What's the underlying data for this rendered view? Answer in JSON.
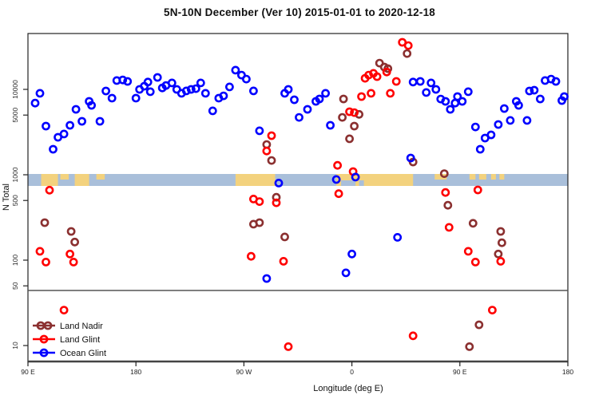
{
  "title": "5N-10N December (Ver 10)   2015-01-01 to 2020-12-18",
  "legend": {
    "entries": [
      {
        "label": "Land Nadir",
        "color": "#8B3030",
        "marker": "double-circle-line"
      },
      {
        "label": "Land Glint",
        "color": "#FF0000",
        "marker": "circle-line"
      },
      {
        "label": "Ocean Glint",
        "color": "#0000FF",
        "marker": "circle-line"
      }
    ]
  },
  "chart_data": {
    "type": "scatter",
    "title": "5N-10N December (Ver 10)   2015-01-01 to 2020-12-18",
    "xlabel": "Longitude (deg E)",
    "ylabel": "N Total",
    "y_scale": "log10",
    "grid": "off",
    "x_axis": {
      "note": "t = degrees east of 90E along wrapped axis, range 0-450",
      "ticks": [
        {
          "t": 0,
          "label": "90 E"
        },
        {
          "t": 90,
          "label": "180"
        },
        {
          "t": 180,
          "label": "90 W"
        },
        {
          "t": 270,
          "label": "0"
        },
        {
          "t": 360,
          "label": "90 E"
        },
        {
          "t": 450,
          "label": "180"
        }
      ]
    },
    "y_axis": {
      "ticks": [
        10000,
        5000,
        1000,
        500,
        100,
        50,
        10
      ],
      "labels": [
        "10000",
        "5000",
        "1000",
        "500",
        "100",
        "50",
        "10"
      ],
      "range": [
        6,
        50000
      ]
    },
    "sub_panel_divider_value": 45,
    "land_strip": {
      "ocean_color": "#A9BFDA",
      "land_color": "#F3D27E",
      "value_band": [
        750,
        1030
      ],
      "land_segments": [
        {
          "t0": 11,
          "t1": 25,
          "h": "full"
        },
        {
          "t0": 27,
          "t1": 34,
          "h": "top"
        },
        {
          "t0": 39,
          "t1": 51,
          "h": "full"
        },
        {
          "t0": 57,
          "t1": 64,
          "h": "top"
        },
        {
          "t0": 173,
          "t1": 206,
          "h": "full"
        },
        {
          "t0": 257,
          "t1": 321,
          "h": "full"
        },
        {
          "t0": 339,
          "t1": 349,
          "h": "top"
        },
        {
          "t0": 368,
          "t1": 373,
          "h": "top"
        },
        {
          "t0": 376,
          "t1": 382,
          "h": "top"
        },
        {
          "t0": 386,
          "t1": 390,
          "h": "top"
        },
        {
          "t0": 393,
          "t1": 397,
          "h": "top"
        }
      ],
      "ocean_notches": [
        {
          "t0": 261,
          "t1": 273
        },
        {
          "t0": 276,
          "t1": 280
        }
      ]
    },
    "series": [
      {
        "name": "Land Nadir",
        "color": "#8B3030",
        "points": [
          [
            14,
            275
          ],
          [
            36,
            217
          ],
          [
            39,
            163
          ],
          [
            199,
            2260
          ],
          [
            203,
            1470
          ],
          [
            188,
            264
          ],
          [
            193,
            275
          ],
          [
            207,
            545
          ],
          [
            214,
            187
          ],
          [
            316,
            26300
          ],
          [
            293,
            20300
          ],
          [
            297,
            18260
          ],
          [
            300,
            17500
          ],
          [
            263,
            7730
          ],
          [
            262,
            4700
          ],
          [
            276,
            5100
          ],
          [
            272,
            3720
          ],
          [
            268,
            2640
          ],
          [
            321,
            1410
          ],
          [
            347,
            1030
          ],
          [
            350,
            440
          ],
          [
            371,
            270
          ],
          [
            394,
            217
          ],
          [
            395,
            160
          ],
          [
            392,
            118
          ],
          [
            376,
            17.5
          ],
          [
            368,
            9.7
          ]
        ]
      },
      {
        "name": "Land Glint",
        "color": "#FF0000",
        "points": [
          [
            18,
            660
          ],
          [
            10,
            127
          ],
          [
            15,
            95
          ],
          [
            35,
            118
          ],
          [
            38,
            95
          ],
          [
            30,
            26
          ],
          [
            203,
            2870
          ],
          [
            199,
            1900
          ],
          [
            188,
            520
          ],
          [
            193,
            485
          ],
          [
            207,
            470
          ],
          [
            186,
            111
          ],
          [
            213,
            97
          ],
          [
            217,
            9.7
          ],
          [
            258,
            1290
          ],
          [
            271,
            1090
          ],
          [
            259,
            600
          ],
          [
            312,
            35600
          ],
          [
            317,
            32600
          ],
          [
            281,
            13500
          ],
          [
            284,
            14700
          ],
          [
            288,
            15400
          ],
          [
            291,
            14100
          ],
          [
            299,
            16000
          ],
          [
            307,
            12400
          ],
          [
            278,
            8240
          ],
          [
            286,
            9000
          ],
          [
            302,
            9000
          ],
          [
            268,
            5470
          ],
          [
            272,
            5350
          ],
          [
            321,
            13
          ],
          [
            375,
            665
          ],
          [
            348,
            620
          ],
          [
            351,
            242
          ],
          [
            367,
            127
          ],
          [
            373,
            95
          ],
          [
            394,
            97
          ],
          [
            387,
            26
          ]
        ]
      },
      {
        "name": "Ocean Glint",
        "color": "#0000FF",
        "points": [
          [
            6,
            6900
          ],
          [
            10,
            9000
          ],
          [
            15,
            3720
          ],
          [
            21,
            1990
          ],
          [
            25,
            2750
          ],
          [
            30,
            3000
          ],
          [
            35,
            3800
          ],
          [
            40,
            5840
          ],
          [
            45,
            4230
          ],
          [
            51,
            7240
          ],
          [
            53,
            6500
          ],
          [
            60,
            4230
          ],
          [
            65,
            9580
          ],
          [
            70,
            7900
          ],
          [
            74,
            12700
          ],
          [
            79,
            12900
          ],
          [
            83,
            12400
          ],
          [
            90,
            7900
          ],
          [
            93,
            10000
          ],
          [
            97,
            10900
          ],
          [
            100,
            12200
          ],
          [
            102,
            9400
          ],
          [
            108,
            13800
          ],
          [
            112,
            10400
          ],
          [
            115,
            11100
          ],
          [
            120,
            11900
          ],
          [
            124,
            10000
          ],
          [
            128,
            9000
          ],
          [
            132,
            9600
          ],
          [
            136,
            10000
          ],
          [
            140,
            10200
          ],
          [
            144,
            11900
          ],
          [
            148,
            9000
          ],
          [
            154,
            5600
          ],
          [
            159,
            7900
          ],
          [
            163,
            8400
          ],
          [
            168,
            10700
          ],
          [
            173,
            16800
          ],
          [
            178,
            14700
          ],
          [
            182,
            13200
          ],
          [
            188,
            9600
          ],
          [
            193,
            3270
          ],
          [
            214,
            9000
          ],
          [
            217,
            10000
          ],
          [
            222,
            7560
          ],
          [
            226,
            4700
          ],
          [
            233,
            5840
          ],
          [
            240,
            7240
          ],
          [
            243,
            7730
          ],
          [
            248,
            9000
          ],
          [
            252,
            3800
          ],
          [
            321,
            12200
          ],
          [
            327,
            12400
          ],
          [
            332,
            9200
          ],
          [
            336,
            11900
          ],
          [
            340,
            10000
          ],
          [
            344,
            7700
          ],
          [
            348,
            7240
          ],
          [
            352,
            5840
          ],
          [
            356,
            6900
          ],
          [
            358,
            8240
          ],
          [
            362,
            7240
          ],
          [
            367,
            9400
          ],
          [
            373,
            3630
          ],
          [
            377,
            1990
          ],
          [
            381,
            2690
          ],
          [
            386,
            2930
          ],
          [
            392,
            3880
          ],
          [
            397,
            5970
          ],
          [
            402,
            4330
          ],
          [
            407,
            7240
          ],
          [
            409,
            6500
          ],
          [
            416,
            4330
          ],
          [
            418,
            9580
          ],
          [
            422,
            9790
          ],
          [
            427,
            7730
          ],
          [
            431,
            12700
          ],
          [
            436,
            13200
          ],
          [
            440,
            12400
          ],
          [
            445,
            7400
          ],
          [
            447,
            8240
          ],
          [
            319,
            1570
          ],
          [
            209,
            800
          ],
          [
            257,
            880
          ],
          [
            273,
            940
          ],
          [
            308,
            185
          ],
          [
            270,
            118
          ],
          [
            265,
            71
          ],
          [
            199,
            61
          ]
        ]
      }
    ]
  }
}
